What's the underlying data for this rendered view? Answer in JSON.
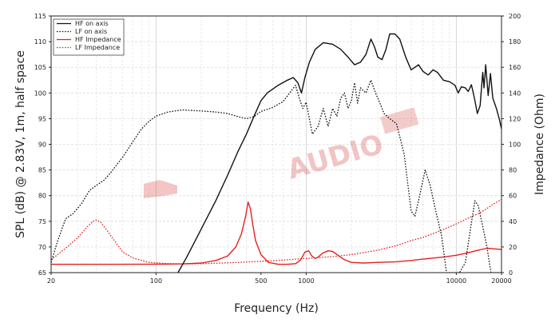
{
  "chart_data": {
    "type": "line",
    "title": "",
    "xlabel": "Frequency (Hz)",
    "ylabel_left": "SPL (dB) @ 2.83V, 1m, half space",
    "ylabel_right": "Impedance (Ohm)",
    "xscale": "log",
    "xlim": [
      20,
      20000
    ],
    "ylim_left": [
      65,
      115
    ],
    "ylim_right": [
      0,
      200
    ],
    "grid": true,
    "legend_position": "top-left",
    "x_ticks": [
      {
        "value": 20,
        "label": "20"
      },
      {
        "value": 100,
        "label": "100"
      },
      {
        "value": 500,
        "label": "500"
      },
      {
        "value": 1000,
        "label": "1000"
      },
      {
        "value": 10000,
        "label": "10000"
      },
      {
        "value": 20000,
        "label": "20000"
      }
    ],
    "y_left_ticks": [
      65,
      70,
      75,
      80,
      85,
      90,
      95,
      100,
      105,
      110,
      115
    ],
    "y_right_ticks": [
      0,
      20,
      40,
      60,
      80,
      100,
      120,
      140,
      160,
      180,
      200
    ],
    "watermark": "AUDIO",
    "series": [
      {
        "name": "HF on axis",
        "axis": "left",
        "color": "#111111",
        "style": "solid",
        "points": [
          [
            140,
            65
          ],
          [
            160,
            68
          ],
          [
            200,
            73.5
          ],
          [
            250,
            79
          ],
          [
            300,
            84
          ],
          [
            350,
            88.5
          ],
          [
            400,
            92
          ],
          [
            450,
            95.5
          ],
          [
            500,
            98.5
          ],
          [
            550,
            100
          ],
          [
            650,
            101.5
          ],
          [
            750,
            102.5
          ],
          [
            820,
            103
          ],
          [
            880,
            102
          ],
          [
            930,
            100
          ],
          [
            980,
            103
          ],
          [
            1050,
            106
          ],
          [
            1150,
            108.5
          ],
          [
            1300,
            109.8
          ],
          [
            1500,
            109.5
          ],
          [
            1700,
            108.5
          ],
          [
            1900,
            107
          ],
          [
            2100,
            105.5
          ],
          [
            2300,
            106
          ],
          [
            2500,
            107.5
          ],
          [
            2700,
            110.5
          ],
          [
            2850,
            109
          ],
          [
            3000,
            107
          ],
          [
            3200,
            106.5
          ],
          [
            3400,
            108.5
          ],
          [
            3600,
            111.5
          ],
          [
            3900,
            111.5
          ],
          [
            4200,
            110.5
          ],
          [
            4600,
            107
          ],
          [
            5000,
            104.5
          ],
          [
            5600,
            105.5
          ],
          [
            6000,
            104.2
          ],
          [
            6500,
            103.5
          ],
          [
            7000,
            104.5
          ],
          [
            7500,
            104
          ],
          [
            8200,
            102.5
          ],
          [
            9000,
            102.2
          ],
          [
            9800,
            101.5
          ],
          [
            10300,
            100
          ],
          [
            10800,
            101.2
          ],
          [
            11500,
            101
          ],
          [
            12000,
            100.3
          ],
          [
            12600,
            101.6
          ],
          [
            13200,
            99
          ],
          [
            13800,
            96
          ],
          [
            14400,
            97.5
          ],
          [
            15000,
            104
          ],
          [
            15300,
            101
          ],
          [
            15700,
            105.5
          ],
          [
            16300,
            99.5
          ],
          [
            16900,
            103.8
          ],
          [
            17500,
            99
          ],
          [
            18500,
            97
          ],
          [
            19300,
            95
          ],
          [
            20000,
            93
          ]
        ]
      },
      {
        "name": "LF on axis",
        "axis": "left",
        "color": "#111111",
        "style": "dotted",
        "points": [
          [
            20,
            67
          ],
          [
            22,
            71
          ],
          [
            25,
            75.5
          ],
          [
            28,
            76.5
          ],
          [
            32,
            78.5
          ],
          [
            36,
            81
          ],
          [
            40,
            82
          ],
          [
            45,
            83
          ],
          [
            50,
            84.5
          ],
          [
            60,
            87.5
          ],
          [
            70,
            90.5
          ],
          [
            80,
            93
          ],
          [
            90,
            94.5
          ],
          [
            100,
            95.5
          ],
          [
            120,
            96.3
          ],
          [
            150,
            96.7
          ],
          [
            200,
            96.5
          ],
          [
            250,
            96.3
          ],
          [
            300,
            96
          ],
          [
            350,
            95.4
          ],
          [
            400,
            95
          ],
          [
            450,
            95.4
          ],
          [
            500,
            96.4
          ],
          [
            600,
            97.2
          ],
          [
            700,
            98.3
          ],
          [
            800,
            100.5
          ],
          [
            850,
            101.5
          ],
          [
            900,
            99
          ],
          [
            950,
            97
          ],
          [
            1000,
            98.2
          ],
          [
            1100,
            92
          ],
          [
            1200,
            93.5
          ],
          [
            1300,
            97
          ],
          [
            1400,
            93.5
          ],
          [
            1500,
            97
          ],
          [
            1600,
            95.5
          ],
          [
            1700,
            99
          ],
          [
            1800,
            100
          ],
          [
            1900,
            97
          ],
          [
            2000,
            98.5
          ],
          [
            2100,
            102
          ],
          [
            2200,
            98
          ],
          [
            2300,
            101
          ],
          [
            2500,
            100
          ],
          [
            2700,
            102.5
          ],
          [
            2900,
            100
          ],
          [
            3100,
            98
          ],
          [
            3300,
            96
          ],
          [
            3600,
            95
          ],
          [
            4000,
            94
          ],
          [
            4500,
            88
          ],
          [
            5000,
            77
          ],
          [
            5300,
            76
          ],
          [
            5700,
            80
          ],
          [
            6200,
            85
          ],
          [
            6700,
            82
          ],
          [
            7300,
            77
          ],
          [
            8000,
            72
          ],
          [
            8600,
            65
          ],
          [
            9500,
            65
          ],
          [
            10500,
            65
          ],
          [
            11500,
            67
          ],
          [
            12500,
            74
          ],
          [
            13300,
            79
          ],
          [
            14000,
            78
          ],
          [
            15000,
            74
          ],
          [
            16000,
            70
          ],
          [
            17000,
            65
          ],
          [
            20000,
            65
          ]
        ]
      },
      {
        "name": "HF Impedance",
        "axis": "right",
        "color": "#e82020",
        "style": "solid",
        "points": [
          [
            20,
            6.5
          ],
          [
            50,
            6.5
          ],
          [
            100,
            6.6
          ],
          [
            150,
            6.8
          ],
          [
            200,
            7.5
          ],
          [
            250,
            9.5
          ],
          [
            300,
            13
          ],
          [
            340,
            20
          ],
          [
            370,
            30
          ],
          [
            395,
            44
          ],
          [
            410,
            55
          ],
          [
            425,
            50
          ],
          [
            440,
            38
          ],
          [
            460,
            25
          ],
          [
            500,
            14
          ],
          [
            560,
            8
          ],
          [
            650,
            6.5
          ],
          [
            750,
            6.5
          ],
          [
            850,
            7
          ],
          [
            920,
            10
          ],
          [
            980,
            16
          ],
          [
            1040,
            17
          ],
          [
            1090,
            13
          ],
          [
            1150,
            11
          ],
          [
            1200,
            12
          ],
          [
            1280,
            15
          ],
          [
            1400,
            17
          ],
          [
            1500,
            16.5
          ],
          [
            1650,
            13
          ],
          [
            1800,
            10
          ],
          [
            2000,
            8
          ],
          [
            2400,
            7.5
          ],
          [
            3000,
            8
          ],
          [
            4000,
            8.5
          ],
          [
            5000,
            9.5
          ],
          [
            6000,
            10.5
          ],
          [
            8000,
            12
          ],
          [
            10000,
            13.5
          ],
          [
            12000,
            15.5
          ],
          [
            14000,
            17.5
          ],
          [
            16000,
            19
          ],
          [
            18000,
            18.5
          ],
          [
            20000,
            18
          ]
        ]
      },
      {
        "name": "LF Impedance",
        "axis": "right",
        "color": "#e82020",
        "style": "dotted",
        "points": [
          [
            20,
            10
          ],
          [
            25,
            19
          ],
          [
            30,
            27
          ],
          [
            35,
            36
          ],
          [
            38,
            40
          ],
          [
            40,
            41
          ],
          [
            43,
            39
          ],
          [
            47,
            33
          ],
          [
            52,
            26
          ],
          [
            60,
            16
          ],
          [
            70,
            11.5
          ],
          [
            90,
            8
          ],
          [
            120,
            7
          ],
          [
            170,
            6.8
          ],
          [
            250,
            7.3
          ],
          [
            350,
            8
          ],
          [
            500,
            8.8
          ],
          [
            700,
            9.8
          ],
          [
            1000,
            11
          ],
          [
            1500,
            12.5
          ],
          [
            2000,
            14
          ],
          [
            3000,
            17.5
          ],
          [
            4000,
            21
          ],
          [
            5000,
            25
          ],
          [
            6000,
            27.5
          ],
          [
            8000,
            33
          ],
          [
            10000,
            38
          ],
          [
            12000,
            42.5
          ],
          [
            14000,
            46
          ],
          [
            16000,
            50
          ],
          [
            18000,
            54
          ],
          [
            20000,
            57
          ]
        ]
      }
    ]
  }
}
